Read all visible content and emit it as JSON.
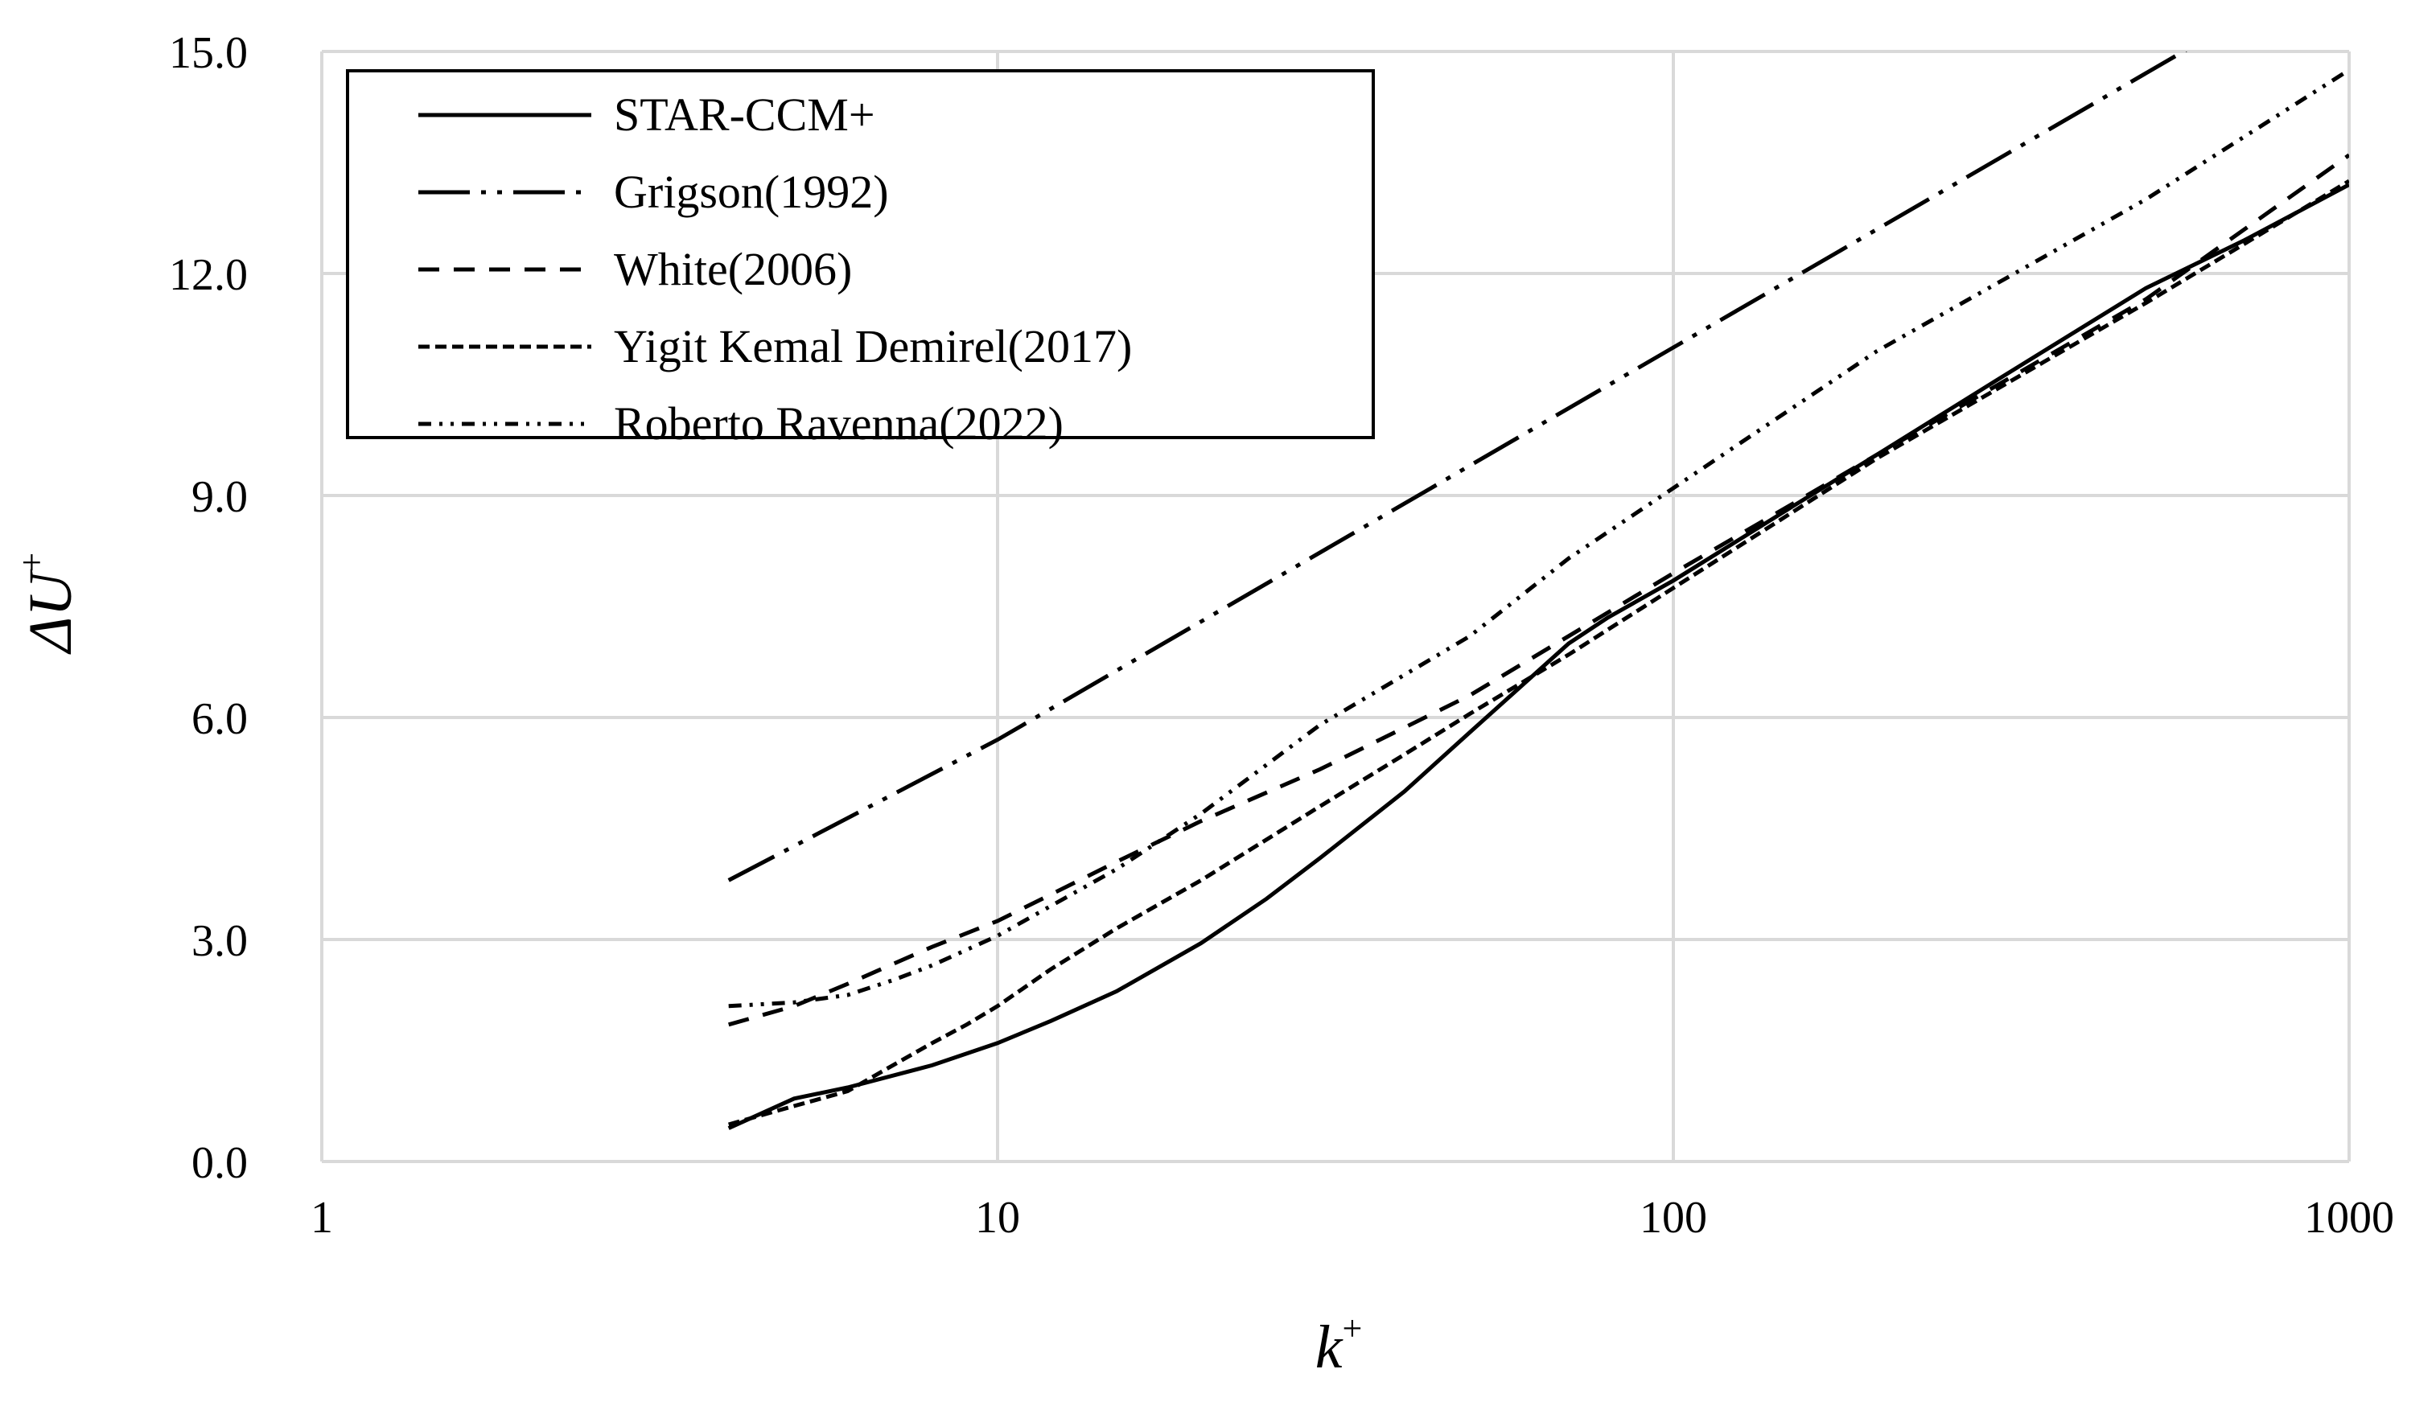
{
  "chart_data": {
    "type": "line",
    "xscale": "log",
    "xlim": [
      1,
      1000
    ],
    "ylim": [
      0,
      15
    ],
    "xlabel": "k",
    "xlabel_sup": "+",
    "ylabel": "ΔU",
    "ylabel_sup": "+",
    "xticks": [
      1,
      10,
      100,
      1000
    ],
    "xtick_labels": [
      "1",
      "10",
      "100",
      "1000"
    ],
    "yticks": [
      0,
      3,
      6,
      9,
      12,
      15
    ],
    "ytick_labels": [
      "0.0",
      "3.0",
      "6.0",
      "9.0",
      "12.0",
      "15.0"
    ],
    "grid": true,
    "legend": "top-left",
    "series": [
      {
        "name": "STAR-CCM+",
        "dash": "",
        "x": [
          4,
          5,
          6,
          8,
          10,
          12,
          15,
          20,
          25,
          30,
          40,
          50,
          60,
          70,
          80,
          100,
          150,
          200,
          300,
          500,
          700,
          1000
        ],
        "y": [
          0.45,
          0.85,
          1.0,
          1.3,
          1.6,
          1.9,
          2.3,
          2.95,
          3.55,
          4.1,
          5.0,
          5.8,
          6.45,
          7.0,
          7.35,
          7.85,
          8.85,
          9.55,
          10.55,
          11.8,
          12.45,
          13.2
        ]
      },
      {
        "name": "Grigson(1992)",
        "dash": "64 14 6 14 6 14",
        "x": [
          4,
          10,
          100,
          1000
        ],
        "y": [
          3.8,
          5.7,
          11.0,
          16.3
        ]
      },
      {
        "name": "White(2006)",
        "dash": "26 18",
        "x": [
          4,
          5,
          6,
          8,
          10,
          15,
          20,
          30,
          50,
          70,
          100,
          200,
          500,
          1000
        ],
        "y": [
          1.85,
          2.1,
          2.4,
          2.9,
          3.25,
          4.05,
          4.6,
          5.3,
          6.3,
          7.1,
          7.95,
          9.55,
          11.65,
          13.6
        ]
      },
      {
        "name": "Yigit Kemal Demirel(2017)",
        "dash": "14 7",
        "x": [
          4,
          5,
          6,
          7,
          8,
          9,
          10,
          12,
          15,
          20,
          30,
          40,
          50,
          70,
          100,
          200,
          500,
          1000
        ],
        "y": [
          0.5,
          0.75,
          0.95,
          1.3,
          1.6,
          1.85,
          2.1,
          2.6,
          3.15,
          3.8,
          4.8,
          5.5,
          6.05,
          6.85,
          7.75,
          9.5,
          11.6,
          13.25
        ]
      },
      {
        "name": "Roberto Ravenna(2022)",
        "dash": "16 10 4 10 4 10",
        "x": [
          4,
          5,
          6,
          7,
          8,
          10,
          15,
          20,
          30,
          50,
          70,
          100,
          200,
          500,
          1000
        ],
        "y": [
          2.1,
          2.15,
          2.25,
          2.45,
          2.65,
          3.05,
          3.95,
          4.7,
          5.9,
          7.1,
          8.15,
          9.1,
          10.95,
          13.0,
          14.75
        ]
      }
    ]
  }
}
